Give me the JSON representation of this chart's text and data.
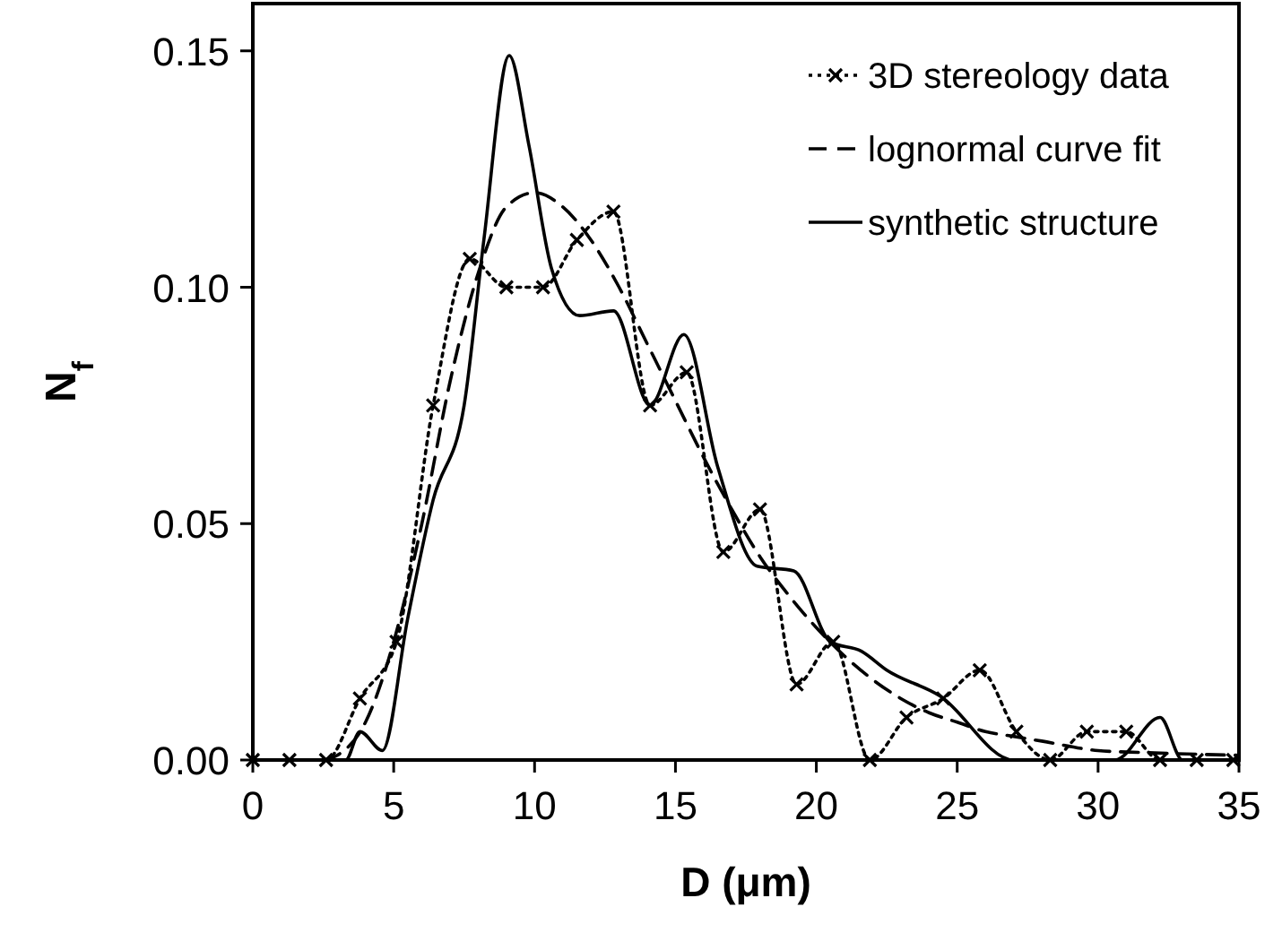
{
  "chart_data": {
    "type": "line",
    "xlabel": "D (μm)",
    "ylabel": "N$_{f}$",
    "xlim": [
      0,
      35
    ],
    "ylim": [
      0,
      0.16
    ],
    "xticks": [
      0,
      5,
      10,
      15,
      20,
      25,
      30,
      35
    ],
    "yticks": [
      {
        "value": 0,
        "label": "0.00"
      },
      {
        "value": 0.05,
        "label": "0.05"
      },
      {
        "value": 0.1,
        "label": "0.10"
      },
      {
        "value": 0.15,
        "label": "0.15"
      }
    ],
    "legend": "top right",
    "grid": false,
    "series": [
      {
        "name": "3D stereology data",
        "color": "#000000",
        "line_style": "dotted",
        "marker": "cross",
        "x": [
          0,
          1.3,
          2.6,
          3.8,
          5.1,
          6.4,
          7.7,
          9.0,
          10.3,
          11.5,
          12.8,
          14.1,
          15.4,
          16.7,
          18.0,
          19.3,
          20.6,
          21.9,
          23.2,
          24.5,
          25.8,
          27.1,
          28.3,
          29.6,
          31.0,
          32.2,
          33.5,
          34.8
        ],
        "values": [
          0,
          0,
          0,
          0.013,
          0.025,
          0.075,
          0.106,
          0.1,
          0.1,
          0.11,
          0.116,
          0.075,
          0.082,
          0.044,
          0.053,
          0.016,
          0.025,
          0,
          0.009,
          0.013,
          0.019,
          0.006,
          0,
          0.006,
          0.006,
          0,
          0,
          0
        ]
      },
      {
        "name": "lognormal curve fit",
        "color": "#000000",
        "line_style": "dashed",
        "marker": "none",
        "x": [
          2.5,
          3,
          4,
          5,
          6,
          7,
          8,
          9,
          10,
          11,
          12,
          13,
          14,
          15,
          16,
          17,
          18,
          19,
          20,
          21,
          22,
          23,
          24,
          25,
          26,
          27,
          28,
          30,
          32,
          35
        ],
        "values": [
          0,
          0.001,
          0.008,
          0.025,
          0.05,
          0.08,
          0.103,
          0.117,
          0.12,
          0.117,
          0.11,
          0.1,
          0.088,
          0.076,
          0.064,
          0.053,
          0.043,
          0.035,
          0.028,
          0.022,
          0.017,
          0.013,
          0.01,
          0.008,
          0.006,
          0.005,
          0.004,
          0.002,
          0.0015,
          0.001
        ]
      },
      {
        "name": "synthetic structure",
        "color": "#000000",
        "line_style": "solid",
        "marker": "none",
        "x": [
          0,
          3.3,
          3.8,
          4.6,
          5.5,
          6.4,
          7.5,
          8.2,
          9.1,
          9.8,
          10.6,
          11.6,
          12.8,
          14.1,
          15.3,
          16.5,
          17.9,
          19.2,
          20.5,
          21.6,
          22.5,
          24.4,
          27.0,
          30.6,
          32.2,
          33.0,
          35
        ],
        "values": [
          0,
          0,
          0.006,
          0.002,
          0.03,
          0.055,
          0.075,
          0.11,
          0.149,
          0.13,
          0.104,
          0.094,
          0.095,
          0.075,
          0.09,
          0.062,
          0.041,
          0.04,
          0.025,
          0.023,
          0.019,
          0.0135,
          0,
          0,
          0.009,
          0,
          0
        ]
      }
    ]
  }
}
